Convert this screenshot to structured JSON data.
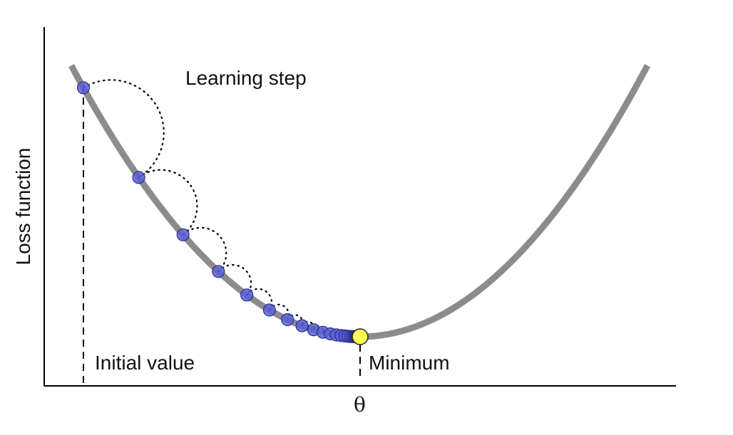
{
  "diagram": {
    "annotations": {
      "learning_step": "Learning step",
      "initial_value": "Initial value",
      "minimum": "Minimum"
    },
    "axes": {
      "x_label": "θ",
      "y_label": "Loss function"
    },
    "colors": {
      "curve": "#8c8c8c",
      "step_points": "#5b62d6",
      "step_point_edge": "#2c2f8f",
      "minimum_point": "#ffff55",
      "axis": "#000000",
      "guide_lines": "#000000"
    },
    "step_count": 22
  }
}
